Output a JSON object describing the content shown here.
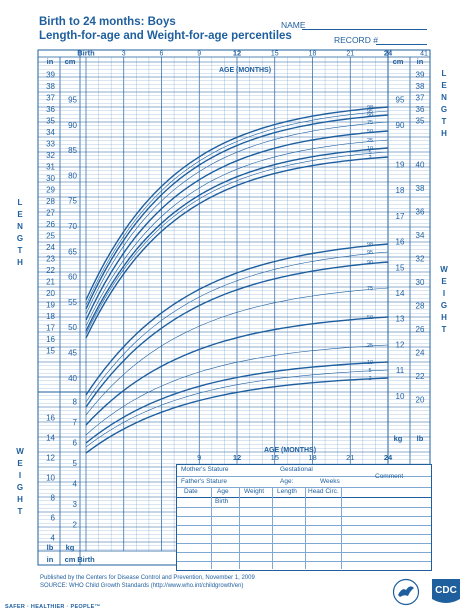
{
  "header": {
    "title_line1": "Birth to 24 months: Boys",
    "title_line2": "Length-for-age and Weight-for-age percentiles",
    "name_label": "NAME",
    "record_label": "RECORD #"
  },
  "top_axis": {
    "labels": [
      "Birth",
      "3",
      "6",
      "9",
      "12",
      "15",
      "18",
      "21",
      "24"
    ],
    "bold": [
      "Birth",
      "12",
      "24"
    ],
    "right_extra": "41"
  },
  "age_axis_title": "AGE (MONTHS)",
  "units": {
    "in": "in",
    "cm": "cm",
    "kg": "kg",
    "lb": "lb"
  },
  "side_titles": {
    "length_left": [
      "L",
      "E",
      "N",
      "G",
      "T",
      "H"
    ],
    "length_right": [
      "L",
      "E",
      "N",
      "G",
      "T",
      "H"
    ],
    "weight_left": [
      "W",
      "E",
      "I",
      "G",
      "H",
      "T"
    ],
    "weight_right": [
      "W",
      "E",
      "I",
      "G",
      "H",
      "T"
    ]
  },
  "length_in_left": [
    "39",
    "38",
    "37",
    "36",
    "35",
    "34",
    "33",
    "32",
    "31",
    "30",
    "29",
    "28",
    "27",
    "26",
    "25",
    "24",
    "23",
    "22",
    "21",
    "20",
    "19",
    "18",
    "17",
    "16",
    "15"
  ],
  "length_cm_left": [
    "95",
    "90",
    "85",
    "80",
    "75",
    "70",
    "65",
    "60",
    "55",
    "50",
    "45",
    "40"
  ],
  "length_cm_right": [
    "95",
    "90"
  ],
  "length_in_right": [
    "39",
    "38",
    "37",
    "36",
    "35"
  ],
  "weight_kg_right": [
    "19",
    "18",
    "17",
    "16",
    "15",
    "14",
    "13",
    "12",
    "11",
    "10"
  ],
  "weight_lb_right": [
    "40",
    "38",
    "36",
    "34",
    "32",
    "30",
    "28",
    "26",
    "24",
    "22",
    "20"
  ],
  "weight_kg_left": [
    "8",
    "7",
    "6",
    "5",
    "4",
    "3",
    "2"
  ],
  "weight_lb_left": [
    "16",
    "14",
    "12",
    "10",
    "8",
    "6",
    "4"
  ],
  "length_percentiles": [
    "98",
    "95",
    "90",
    "75",
    "50",
    "25",
    "10",
    "5",
    "2"
  ],
  "weight_percentiles": [
    "98",
    "95",
    "90",
    "75",
    "50",
    "25",
    "10",
    "5",
    "2"
  ],
  "bottom_age_axis": [
    "9",
    "12",
    "15",
    "18",
    "21",
    "24"
  ],
  "bottom_birth": "Birth",
  "bottom_in": "in",
  "bottom_cm": "cm",
  "record_table": {
    "mothers_stature": "Mother's Stature",
    "fathers_stature": "Father's Stature",
    "gestational": "Gestational",
    "age": "Age:",
    "weeks": "Weeks",
    "comment": "Comment",
    "columns": [
      "Date",
      "Age",
      "Weight",
      "Length",
      "Head Circ."
    ],
    "first_age": "Birth"
  },
  "footer": {
    "line1": "Published by the Centers for Disease Control and Prevention, November 1, 2009",
    "line2": "SOURCE:  WHO Child Growth Standards (http://www.who.int/childgrowth/en)",
    "tagline": "SAFER · HEALTHIER · PEOPLE™",
    "cdc_logo_text": "CDC"
  },
  "colors": {
    "ink": "#1f5f9e",
    "grid": "#7fa9d4"
  }
}
